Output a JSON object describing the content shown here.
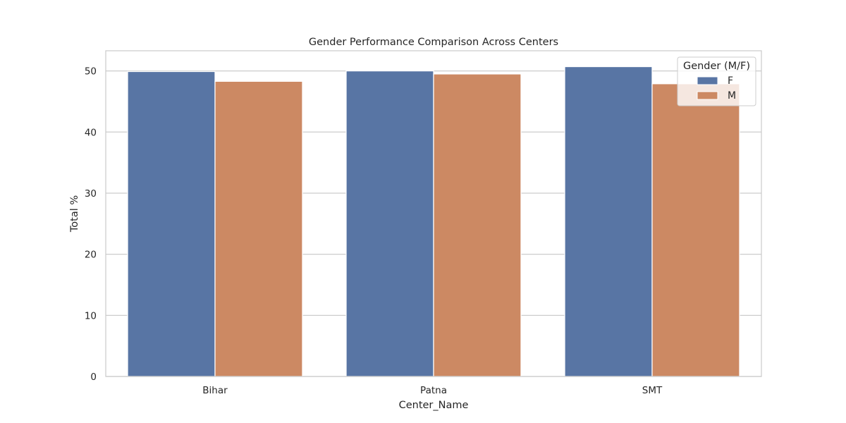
{
  "chart_data": {
    "type": "bar",
    "title": "Gender Performance Comparison Across Centers",
    "xlabel": "Center_Name",
    "ylabel": "Total %",
    "categories": [
      "Bihar",
      "Patna",
      "SMT"
    ],
    "series": [
      {
        "name": "F",
        "values": [
          49.9,
          50.0,
          50.7
        ],
        "color": "#5875a4"
      },
      {
        "name": "M",
        "values": [
          48.3,
          49.5,
          47.9
        ],
        "color": "#cc8963"
      }
    ],
    "ylim": [
      0,
      53.3
    ],
    "yticks": [
      0,
      10,
      20,
      30,
      40,
      50
    ],
    "grid": "horizontal",
    "legend": {
      "title": "Gender (M/F)",
      "position": "top-right"
    }
  }
}
